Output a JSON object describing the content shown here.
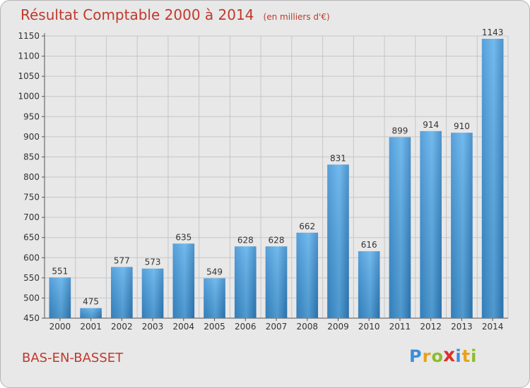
{
  "chart_data": {
    "type": "bar",
    "title": "Résultat Comptable 2000 à 2014",
    "subtitle": "(en milliers d'€)",
    "categories": [
      "2000",
      "2001",
      "2002",
      "2003",
      "2004",
      "2005",
      "2006",
      "2007",
      "2008",
      "2009",
      "2010",
      "2011",
      "2012",
      "2013",
      "2014"
    ],
    "values": [
      551,
      475,
      577,
      573,
      635,
      549,
      628,
      628,
      662,
      831,
      616,
      899,
      914,
      910,
      1143
    ],
    "ylim": [
      450,
      1150
    ],
    "yticks": [
      450,
      500,
      550,
      600,
      650,
      700,
      750,
      800,
      850,
      900,
      950,
      1000,
      1050,
      1100,
      1150
    ],
    "xlabel": "",
    "ylabel": "",
    "grid": true
  },
  "footer": {
    "commune": "BAS-EN-BASSET",
    "logo_letters": [
      "P",
      "r",
      "o",
      "x",
      "i",
      "t",
      "i"
    ]
  },
  "colors": {
    "title": "#c0392b",
    "bar_light": "#5aaeea",
    "bar_dark": "#2f7fc1",
    "grid": "#c6c6c6",
    "logo": [
      "#3b8ed8",
      "#e8a21b",
      "#8dbd2c",
      "#d8322d",
      "#3b8ed8",
      "#e8a21b",
      "#8dbd2c"
    ]
  }
}
